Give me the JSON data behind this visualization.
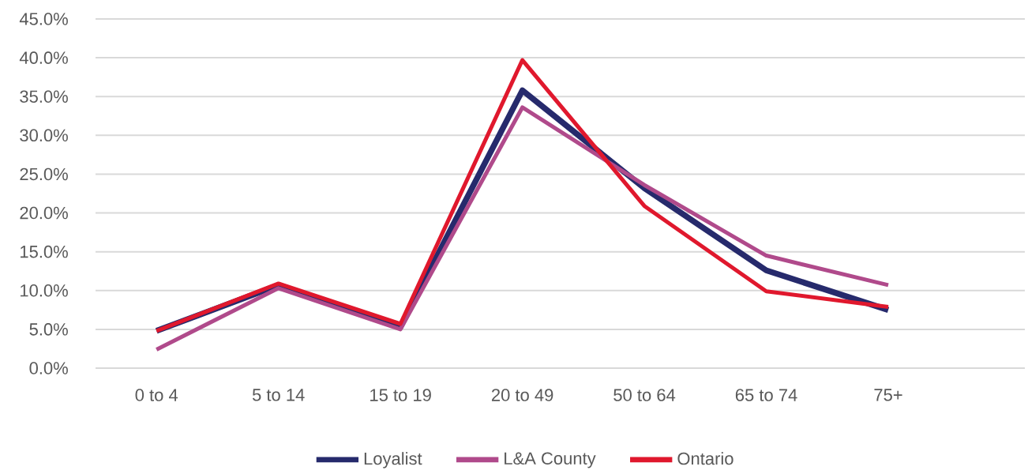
{
  "chart_data": {
    "type": "line",
    "categories": [
      "0 to 4",
      "5 to 14",
      "15 to 19",
      "20 to 49",
      "50 to 64",
      "65 to 74",
      "75+"
    ],
    "series": [
      {
        "name": "Loyalist",
        "color": "#262a6c",
        "values": [
          4.8,
          10.7,
          5.3,
          35.8,
          23.2,
          12.6,
          7.5
        ]
      },
      {
        "name": "L&A County",
        "color": "#b04a8b",
        "values": [
          2.4,
          10.3,
          5.0,
          33.6,
          23.6,
          14.5,
          10.7
        ]
      },
      {
        "name": "Ontario",
        "color": "#e0182d",
        "values": [
          4.8,
          10.9,
          5.7,
          39.7,
          20.9,
          9.9,
          7.9
        ]
      }
    ],
    "ylim": [
      0,
      45
    ],
    "yticks": [
      {
        "value": 0,
        "label": "0.0%"
      },
      {
        "value": 5,
        "label": "5.0%"
      },
      {
        "value": 10,
        "label": "10.0%"
      },
      {
        "value": 15,
        "label": "15.0%"
      },
      {
        "value": 20,
        "label": "20.0%"
      },
      {
        "value": 25,
        "label": "25.0%"
      },
      {
        "value": 30,
        "label": "30.0%"
      },
      {
        "value": 35,
        "label": "35.0%"
      },
      {
        "value": 40,
        "label": "40.0%"
      },
      {
        "value": 45,
        "label": "45.0%"
      }
    ],
    "grid": "y",
    "legend": "bottom",
    "marker": "none",
    "line_style": "solid"
  }
}
